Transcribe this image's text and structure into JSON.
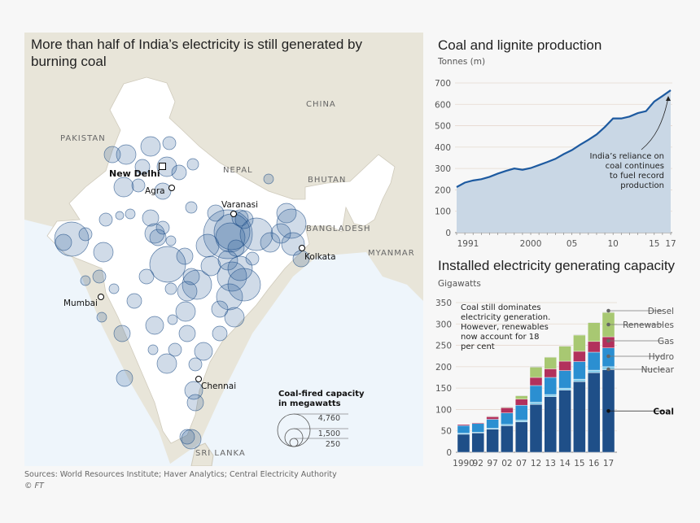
{
  "map": {
    "title": "More than half of India’s electricity is still generated by burning coal",
    "countries": {
      "pakistan": "PAKISTAN",
      "china": "CHINA",
      "nepal": "NEPAL",
      "bhutan": "BHUTAN",
      "bangladesh": "BANGLADESH",
      "myanmar": "MYANMAR",
      "sri_lanka": "SRI LANKA"
    },
    "cities": {
      "new_delhi": "New Delhi",
      "agra": "Agra",
      "varanasi": "Varanasi",
      "kolkata": "Kolkata",
      "mumbai": "Mumbai",
      "chennai": "Chennai"
    },
    "legend": {
      "title_line1": "Coal-fired capacity",
      "title_line2": "in megawatts",
      "values": [
        "4,760",
        "1,500",
        "250"
      ]
    },
    "colors": {
      "land": "#ffffff",
      "neighbours": "#e8e5d9",
      "sea": "#eef5fb",
      "bubble_fill": "#2b5c96",
      "bubble_stroke": "#1f4f88"
    }
  },
  "footer": {
    "sources": "Sources: World Resources Institute; Haver Analytics; Central Electricity Authority",
    "copyright": "© FT"
  },
  "chart_data": [
    {
      "type": "area",
      "title": "Coal and lignite production",
      "ylabel": "Tonnes (m)",
      "ylim": [
        0,
        700
      ],
      "yticks": [
        "0",
        "100",
        "200",
        "300",
        "400",
        "500",
        "600",
        "700"
      ],
      "xtick_labels": [
        [
          "1991",
          1991
        ],
        [
          "2000",
          2000
        ],
        [
          "05",
          2005
        ],
        [
          "10",
          2010
        ],
        [
          "15",
          2015
        ],
        [
          "17",
          2017
        ]
      ],
      "x": [
        1991,
        1992,
        1993,
        1994,
        1995,
        1996,
        1997,
        1998,
        1999,
        2000,
        2001,
        2002,
        2003,
        2004,
        2005,
        2006,
        2007,
        2008,
        2009,
        2010,
        2011,
        2012,
        2013,
        2014,
        2015,
        2016,
        2017
      ],
      "y": [
        213,
        234,
        244,
        250,
        261,
        276,
        289,
        300,
        294,
        302,
        316,
        330,
        345,
        367,
        386,
        411,
        434,
        459,
        494,
        534,
        534,
        543,
        559,
        568,
        613,
        639,
        666
      ],
      "annotation": [
        "India’s reliance on",
        "coal continues",
        "to fuel record",
        "production"
      ],
      "grid": true,
      "colors": {
        "line": "#1d5aa0",
        "fill": "#c9d7e5"
      }
    },
    {
      "type": "bar",
      "stacked": true,
      "title": "Installed electricity generating capacity",
      "ylabel": "Gigawatts",
      "ylim": [
        0,
        350
      ],
      "yticks": [
        "0",
        "50",
        "100",
        "150",
        "200",
        "250",
        "300",
        "350"
      ],
      "categories": [
        "1990",
        "92",
        "97",
        "02",
        "07",
        "12",
        "13",
        "14",
        "15",
        "16",
        "17"
      ],
      "series": [
        {
          "name": "Coal",
          "color": "#1f4f88",
          "values": [
            42,
            45,
            54,
            62,
            71,
            112,
            130,
            145,
            165,
            186,
            193
          ]
        },
        {
          "name": "Nuclear",
          "color": "#86cdeb",
          "values": [
            2.5,
            2,
            2,
            3,
            4,
            5,
            5,
            5,
            6,
            6,
            7
          ]
        },
        {
          "name": "Hydro",
          "color": "#2b8fd1",
          "values": [
            18,
            20,
            21,
            27,
            35,
            39,
            40,
            41,
            41,
            42,
            44
          ]
        },
        {
          "name": "Gas",
          "color": "#b2315c",
          "values": [
            2.5,
            2,
            6,
            12,
            14,
            19,
            20,
            22,
            24,
            25,
            26
          ]
        },
        {
          "name": "Renewables",
          "color": "#a8c872",
          "values": [
            0,
            0,
            1,
            1.5,
            8,
            24,
            27,
            35,
            38,
            44,
            57
          ]
        },
        {
          "name": "Diesel",
          "color": "#555555",
          "values": [
            0.5,
            0.5,
            1,
            1,
            1,
            1.5,
            1,
            1,
            1,
            1,
            1
          ]
        }
      ],
      "annotation": [
        "Coal still dominates",
        "electricity generation.",
        "However, renewables",
        "now account for 18",
        "per cent"
      ],
      "grid": true,
      "legend": "right"
    }
  ]
}
